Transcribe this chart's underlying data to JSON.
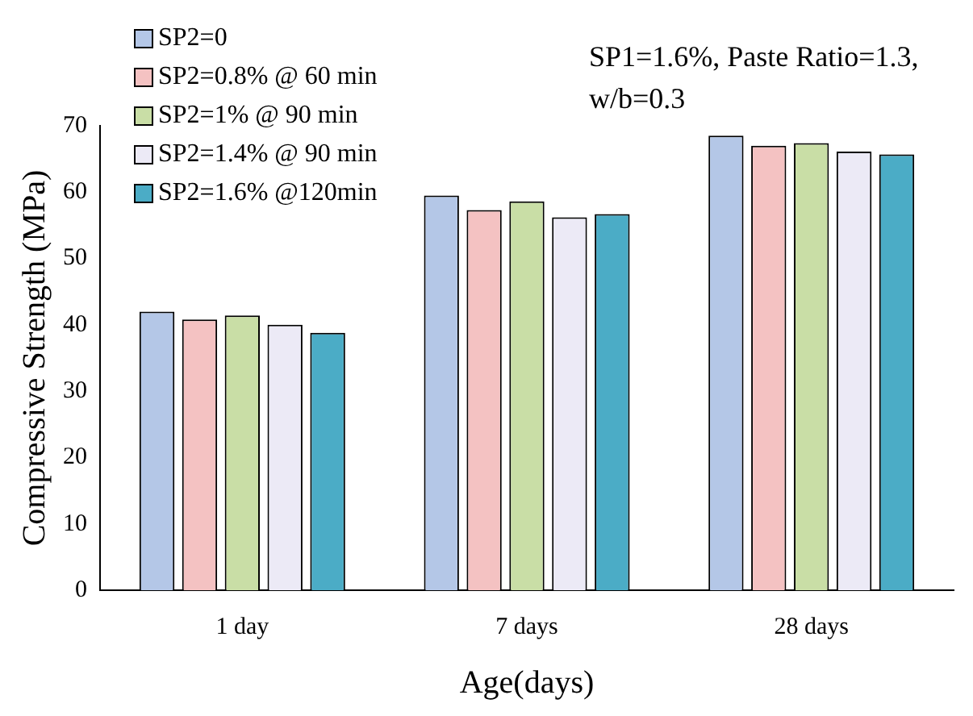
{
  "chart_data": {
    "type": "bar",
    "xlabel": "Age(days)",
    "ylabel": "Compressive Strength (MPa)",
    "categories": [
      "1 day",
      "7 days",
      "28 days"
    ],
    "series": [
      {
        "name": "SP2=0",
        "color": "#b4c7e7",
        "values": [
          42,
          59.5,
          68.5
        ]
      },
      {
        "name": "SP2=0.8% @ 60 min",
        "color": "#f4c2c2",
        "values": [
          40.8,
          57.3,
          67
        ]
      },
      {
        "name": "SP2=1% @ 90 min",
        "color": "#c9dea6",
        "values": [
          41.4,
          58.6,
          67.4
        ]
      },
      {
        "name": "SP2=1.4% @ 90 min",
        "color": "#eceaf6",
        "values": [
          40,
          56.2,
          66.1
        ]
      },
      {
        "name": "SP2=1.6% @120min",
        "color": "#4bacc6",
        "values": [
          38.8,
          56.7,
          65.7
        ]
      }
    ],
    "ylim": [
      0,
      70
    ],
    "yticks": [
      0,
      10,
      20,
      30,
      40,
      50,
      60,
      70
    ],
    "grid": false,
    "legend": "top left",
    "annotations": [
      "SP1=1.6%, Paste Ratio=1.3, w/b=0.3"
    ]
  }
}
